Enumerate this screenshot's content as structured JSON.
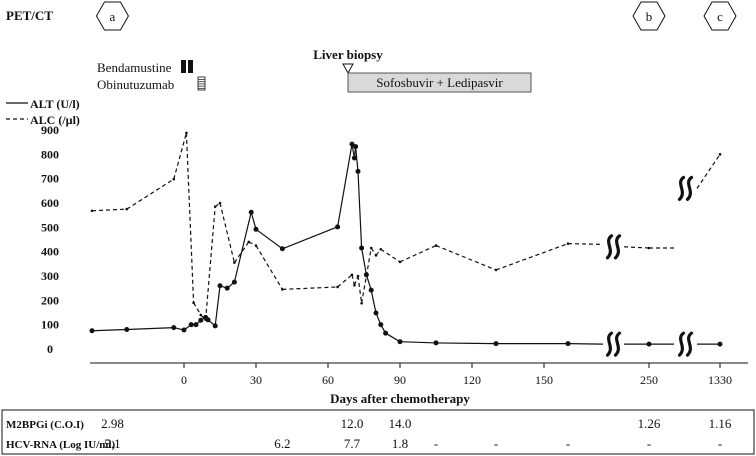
{
  "chart_data": {
    "type": "line",
    "title": "",
    "xlabel": "Days after chemotherapy",
    "ylabel": "",
    "ylim": [
      0,
      900
    ],
    "y_ticks": [
      0,
      100,
      200,
      300,
      400,
      500,
      600,
      700,
      800,
      900
    ],
    "x_ticks": [
      {
        "label": "0",
        "day": 0
      },
      {
        "label": "30",
        "day": 30
      },
      {
        "label": "60",
        "day": 60
      },
      {
        "label": "90",
        "day": 90
      },
      {
        "label": "120",
        "day": 120
      },
      {
        "label": "150",
        "day": 150
      },
      {
        "label": "250",
        "day": 250
      },
      {
        "label": "1330",
        "day": 1330
      }
    ],
    "pet_ct": {
      "label": "PET/CT",
      "markers": [
        {
          "label": "a",
          "day": -35
        },
        {
          "label": "b",
          "day": 250
        },
        {
          "label": "c",
          "day": 1330
        }
      ]
    },
    "treatments": {
      "bendamustine": {
        "label": "Bendamustine",
        "days": [
          0,
          1
        ]
      },
      "obinutuzumab": {
        "label": "Obinutuzumab",
        "day": 8
      },
      "liver_biopsy": {
        "label": "Liver biopsy",
        "day": 67
      },
      "antiviral": {
        "label": "Sofosbuvir + Ledipasvir",
        "start_day": 67,
        "end_day": 155
      }
    },
    "breaks": [
      {
        "series": "ALT",
        "value": 20,
        "between_days": [
          172,
          186
        ]
      },
      {
        "series": "ALT",
        "value": 20,
        "between_days": [
          254,
          277
        ]
      },
      {
        "series": "ALC",
        "value": 420,
        "between_days": [
          172,
          186
        ]
      },
      {
        "series": "ALC",
        "value": 660,
        "between_days": [
          254,
          277
        ]
      }
    ],
    "series": [
      {
        "name": "ALT (U/l)",
        "style": "solid",
        "points": [
          {
            "day": -45,
            "value": 75
          },
          {
            "day": -28,
            "value": 80
          },
          {
            "day": -5,
            "value": 88
          },
          {
            "day": 0,
            "value": 78
          },
          {
            "day": 3,
            "value": 100
          },
          {
            "day": 5,
            "value": 100
          },
          {
            "day": 7,
            "value": 118
          },
          {
            "day": 9,
            "value": 130
          },
          {
            "day": 10,
            "value": 120
          },
          {
            "day": 13,
            "value": 95
          },
          {
            "day": 15,
            "value": 260
          },
          {
            "day": 18,
            "value": 250
          },
          {
            "day": 21,
            "value": 275
          },
          {
            "day": 28,
            "value": 562
          },
          {
            "day": 30,
            "value": 492
          },
          {
            "day": 41,
            "value": 412
          },
          {
            "day": 64,
            "value": 502
          },
          {
            "day": 70,
            "value": 842
          },
          {
            "day": 71,
            "value": 785
          },
          {
            "day": 71.5,
            "value": 832
          },
          {
            "day": 72.5,
            "value": 730
          },
          {
            "day": 74,
            "value": 415
          },
          {
            "day": 76,
            "value": 305
          },
          {
            "day": 78,
            "value": 242
          },
          {
            "day": 80,
            "value": 148
          },
          {
            "day": 82,
            "value": 100
          },
          {
            "day": 84,
            "value": 65
          },
          {
            "day": 90,
            "value": 30
          },
          {
            "day": 105,
            "value": 25
          },
          {
            "day": 130,
            "value": 22
          },
          {
            "day": 160,
            "value": 22
          },
          {
            "day": 172,
            "value": 20
          },
          {
            "day": 186,
            "value": 20
          },
          {
            "day": 250,
            "value": 20
          },
          {
            "day": 254,
            "value": 20
          },
          {
            "day": 277,
            "value": 20
          },
          {
            "day": 1330,
            "value": 20
          }
        ]
      },
      {
        "name": "ALC (/µl)",
        "style": "dashed",
        "points": [
          {
            "day": -45,
            "value": 568
          },
          {
            "day": -28,
            "value": 575
          },
          {
            "day": -5,
            "value": 698
          },
          {
            "day": 1,
            "value": 888
          },
          {
            "day": 4,
            "value": 190
          },
          {
            "day": 7,
            "value": 140
          },
          {
            "day": 9,
            "value": 120
          },
          {
            "day": 13,
            "value": 585
          },
          {
            "day": 15,
            "value": 600
          },
          {
            "day": 21,
            "value": 355
          },
          {
            "day": 27,
            "value": 440
          },
          {
            "day": 30,
            "value": 425
          },
          {
            "day": 41,
            "value": 245
          },
          {
            "day": 64,
            "value": 255
          },
          {
            "day": 70,
            "value": 305
          },
          {
            "day": 71,
            "value": 262
          },
          {
            "day": 72.5,
            "value": 300
          },
          {
            "day": 74,
            "value": 188
          },
          {
            "day": 76,
            "value": 300
          },
          {
            "day": 78,
            "value": 415
          },
          {
            "day": 80,
            "value": 385
          },
          {
            "day": 82,
            "value": 410
          },
          {
            "day": 90,
            "value": 358
          },
          {
            "day": 105,
            "value": 425
          },
          {
            "day": 130,
            "value": 325
          },
          {
            "day": 160,
            "value": 433
          },
          {
            "day": 172,
            "value": 430
          },
          {
            "day": 186,
            "value": 420
          },
          {
            "day": 250,
            "value": 415
          },
          {
            "day": 254,
            "value": 415
          },
          {
            "day": 277,
            "value": 660
          },
          {
            "day": 1330,
            "value": 800
          }
        ]
      }
    ],
    "table": {
      "rows": [
        {
          "label": "M2BPGi (C.O.I)",
          "cells": [
            {
              "day": -35,
              "text": "2.98"
            },
            {
              "day": 70,
              "text": "12.0"
            },
            {
              "day": 90,
              "text": "14.0"
            },
            {
              "day": 250,
              "text": "1.26"
            },
            {
              "day": 1330,
              "text": "1.16"
            }
          ]
        },
        {
          "label": "HCV-RNA (Log IU/ml)",
          "cells": [
            {
              "day": -35,
              "text": "5.1"
            },
            {
              "day": 41,
              "text": "6.2"
            },
            {
              "day": 70,
              "text": "7.7"
            },
            {
              "day": 90,
              "text": "1.8"
            },
            {
              "day": 105,
              "text": "-"
            },
            {
              "day": 130,
              "text": "-"
            },
            {
              "day": 160,
              "text": "-"
            },
            {
              "day": 250,
              "text": "-"
            },
            {
              "day": 1330,
              "text": "-"
            }
          ]
        }
      ]
    }
  }
}
